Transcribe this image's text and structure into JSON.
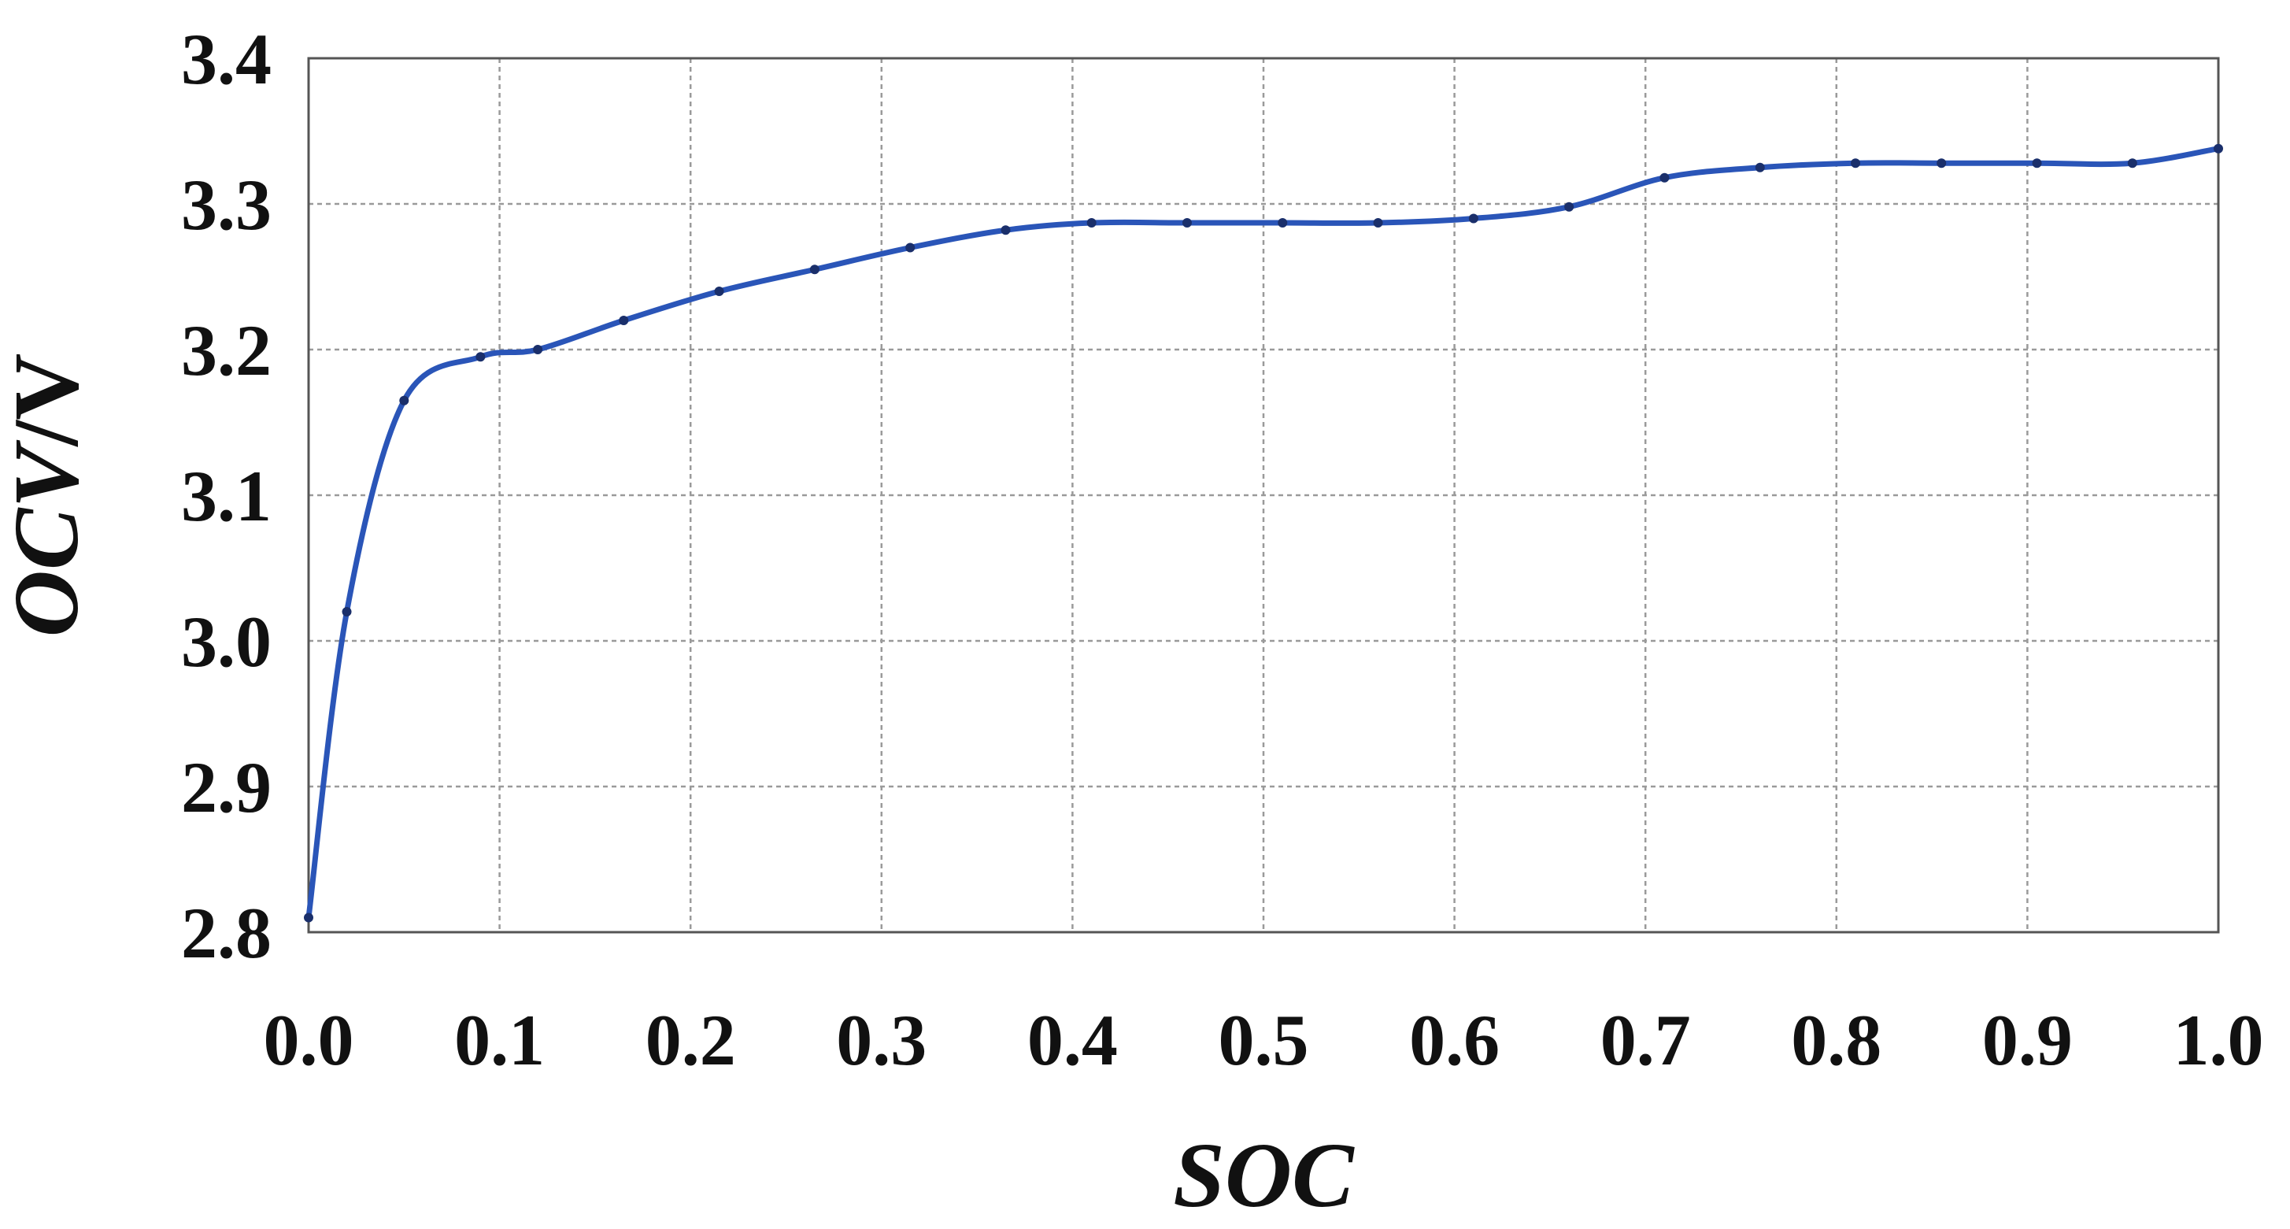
{
  "chart_data": {
    "type": "line",
    "title": "",
    "xlabel": "SOC",
    "ylabel_italic": "OCV",
    "ylabel_unit": "/V",
    "xlim": [
      0.0,
      1.0
    ],
    "ylim": [
      2.8,
      3.4
    ],
    "xticks": [
      "0.0",
      "0.1",
      "0.2",
      "0.3",
      "0.4",
      "0.5",
      "0.6",
      "0.7",
      "0.8",
      "0.9",
      "1.0"
    ],
    "yticks": [
      "2.8",
      "2.9",
      "3.0",
      "3.1",
      "3.2",
      "3.3",
      "3.4"
    ],
    "grid": true,
    "line_color": "#2a55b8",
    "marker_color": "#1a2f6b",
    "grid_color": "#9a9a9a",
    "series": [
      {
        "x": [
          0.0,
          0.02,
          0.05,
          0.09,
          0.12,
          0.165,
          0.215,
          0.265,
          0.315,
          0.365,
          0.41,
          0.46,
          0.51,
          0.56,
          0.61,
          0.66,
          0.71,
          0.76,
          0.81,
          0.855,
          0.905,
          0.955,
          1.0
        ],
        "y": [
          2.81,
          3.02,
          3.165,
          3.195,
          3.2,
          3.22,
          3.24,
          3.255,
          3.27,
          3.282,
          3.287,
          3.287,
          3.287,
          3.287,
          3.29,
          3.298,
          3.318,
          3.325,
          3.328,
          3.328,
          3.328,
          3.328,
          3.338
        ]
      }
    ]
  }
}
